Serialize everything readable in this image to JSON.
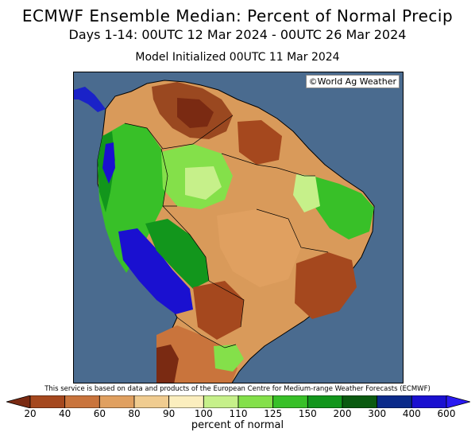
{
  "header": {
    "title": "ECMWF Ensemble Median: Percent of Normal Precip",
    "period": "Days 1-14: 00UTC 12 Mar 2024 - 00UTC 26 Mar 2024",
    "init": "Model Initialized 00UTC 11 Mar 2024"
  },
  "map": {
    "credit": "©World Ag Weather",
    "region": "South America",
    "ocean_color": "#4a6b8f"
  },
  "footer": {
    "disclaimer": "This service is based on data and products of the European Centre for Medium-range Weather Forecasts (ECMWF)",
    "unit_label": "percent of normal"
  },
  "legend": {
    "ticks": [
      "20",
      "40",
      "60",
      "80",
      "90",
      "100",
      "110",
      "125",
      "150",
      "200",
      "300",
      "400",
      "600"
    ],
    "colors": [
      "#7a2a12",
      "#a5481e",
      "#c9743c",
      "#e0a060",
      "#f0cc90",
      "#fbeebe",
      "#c6f08a",
      "#84e04a",
      "#38c028",
      "#12961c",
      "#0a5a10",
      "#0a2a8a",
      "#1a10d0",
      "#2a1af2"
    ]
  }
}
